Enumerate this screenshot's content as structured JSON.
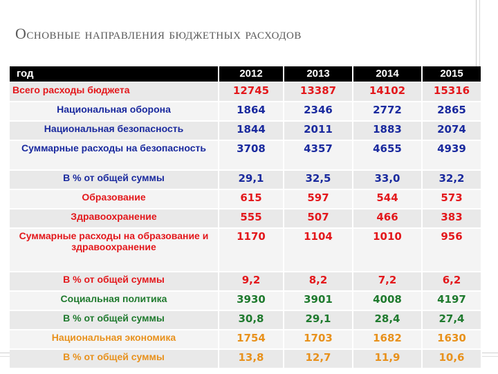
{
  "title": "Основные направления бюджетных расходов",
  "colors": {
    "red": "#e3181c",
    "blue": "#1a2a9e",
    "orange": "#e8911c",
    "green": "#1f7a2e"
  },
  "table": {
    "header": [
      "год",
      "2012",
      "2013",
      "2014",
      "2015"
    ],
    "rows": [
      {
        "label": "Всего расходы бюджета",
        "values": [
          "12745",
          "13387",
          "14102",
          "15316"
        ],
        "color": "#e3181c",
        "labelAlign": "left"
      },
      {
        "label": "Национальная оборона",
        "values": [
          "1864",
          "2346",
          "2772",
          "2865"
        ],
        "color": "#1a2a9e"
      },
      {
        "label": "Национальная безопасность",
        "values": [
          "1844",
          "2011",
          "1883",
          "2074"
        ],
        "color": "#1a2a9e"
      },
      {
        "label": "Суммарные расходы на безопасность",
        "values": [
          "3708",
          "4357",
          "4655",
          "4939"
        ],
        "color": "#1a2a9e"
      },
      {
        "label": "В % от общей суммы",
        "values": [
          "29,1",
          "32,5",
          "33,0",
          "32,2"
        ],
        "color": "#1a2a9e"
      },
      {
        "label": "Образование",
        "values": [
          "615",
          "597",
          "544",
          "573"
        ],
        "color": "#e3181c"
      },
      {
        "label": "Здравоохранение",
        "values": [
          "555",
          "507",
          "466",
          "383"
        ],
        "color": "#e3181c"
      },
      {
        "label": "Суммарные расходы на образование и здравоохранение",
        "values": [
          "1170",
          "1104",
          "1010",
          "956"
        ],
        "color": "#e3181c"
      },
      {
        "label": "В % от общей суммы",
        "values": [
          "9,2",
          "8,2",
          "7,2",
          "6,2"
        ],
        "color": "#e3181c"
      },
      {
        "label": "Социальная политика",
        "values": [
          "3930",
          "3901",
          "4008",
          "4197"
        ],
        "color": "#1f7a2e"
      },
      {
        "label": "В % от общей суммы",
        "values": [
          "30,8",
          "29,1",
          "28,4",
          "27,4"
        ],
        "color": "#1f7a2e"
      },
      {
        "label": "Национальная экономика",
        "values": [
          "1754",
          "1703",
          "1682",
          "1630"
        ],
        "color": "#e8911c"
      },
      {
        "label": "В % от общей суммы",
        "values": [
          "13,8",
          "12,7",
          "11,9",
          "10,6"
        ],
        "color": "#e8911c"
      }
    ]
  }
}
